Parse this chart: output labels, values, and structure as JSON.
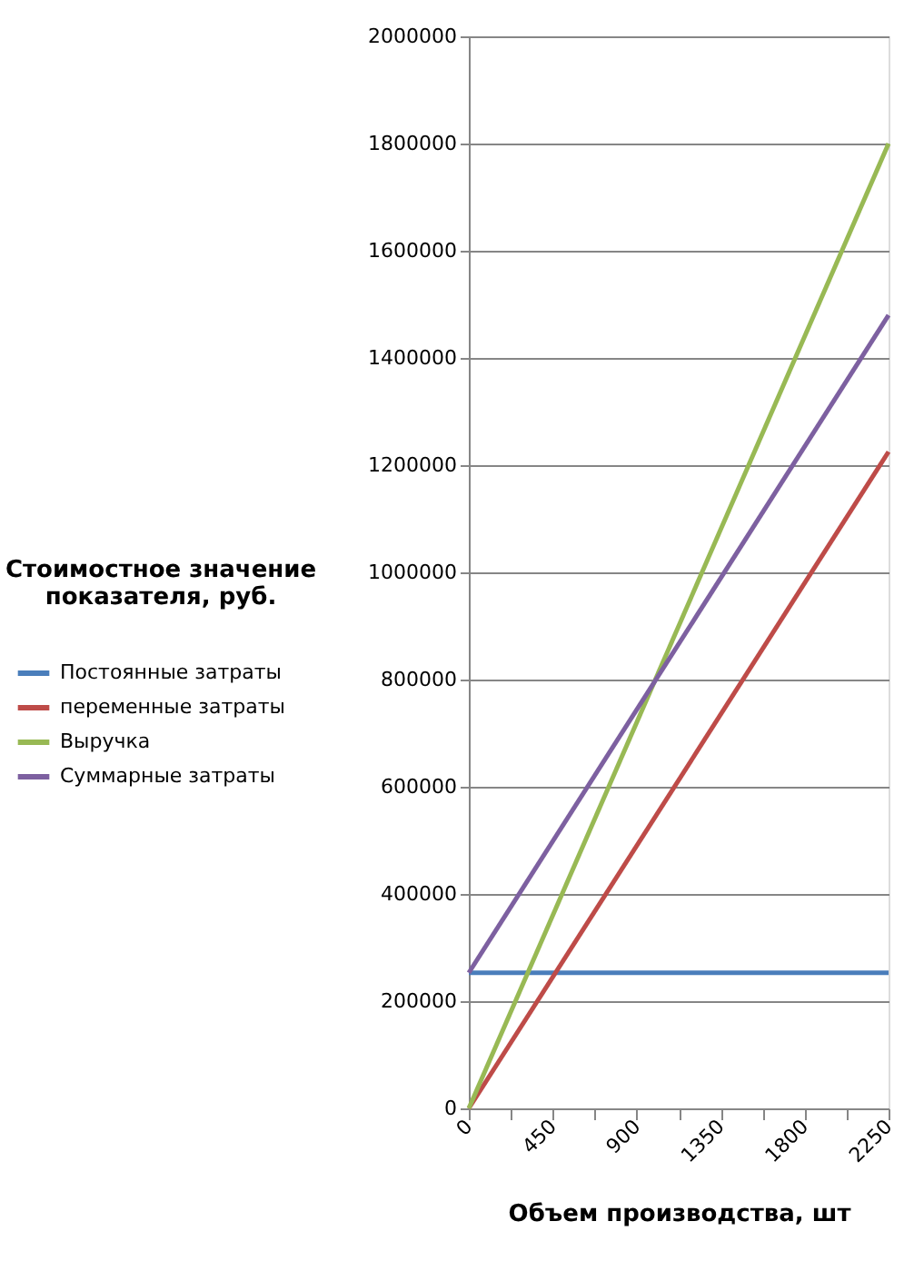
{
  "chart_data": {
    "type": "line",
    "xlabel": "Объем производства, шт",
    "ylabel": "Стоимостное  значение показателя, руб.",
    "x": [
      0,
      2250
    ],
    "series": [
      {
        "name": "Постоянные затраты",
        "color": "#4a7ebb",
        "values": [
          253000,
          253000
        ]
      },
      {
        "name": "переменные затраты",
        "color": "#be4b48",
        "values": [
          0,
          1225000
        ]
      },
      {
        "name": "Выручка",
        "color": "#98b954",
        "values": [
          0,
          1800000
        ]
      },
      {
        "name": "Суммарные затраты",
        "color": "#7d60a0",
        "values": [
          253000,
          1480000
        ]
      }
    ],
    "xlim": [
      0,
      2250
    ],
    "xticks": [
      0,
      {
        "value": 225,
        "label": null
      },
      450,
      {
        "value": 675,
        "label": null
      },
      900,
      {
        "value": 1125,
        "label": null
      },
      1350,
      {
        "value": 1575,
        "label": null
      },
      1800,
      {
        "value": 2025,
        "label": null
      },
      2250
    ],
    "ylim": [
      0,
      2000000
    ],
    "yticks": [
      0,
      200000,
      400000,
      600000,
      800000,
      1000000,
      1200000,
      1400000,
      1600000,
      1800000,
      2000000
    ],
    "grid": "y",
    "legend": "left",
    "marker": "none",
    "line_style": "solid"
  }
}
